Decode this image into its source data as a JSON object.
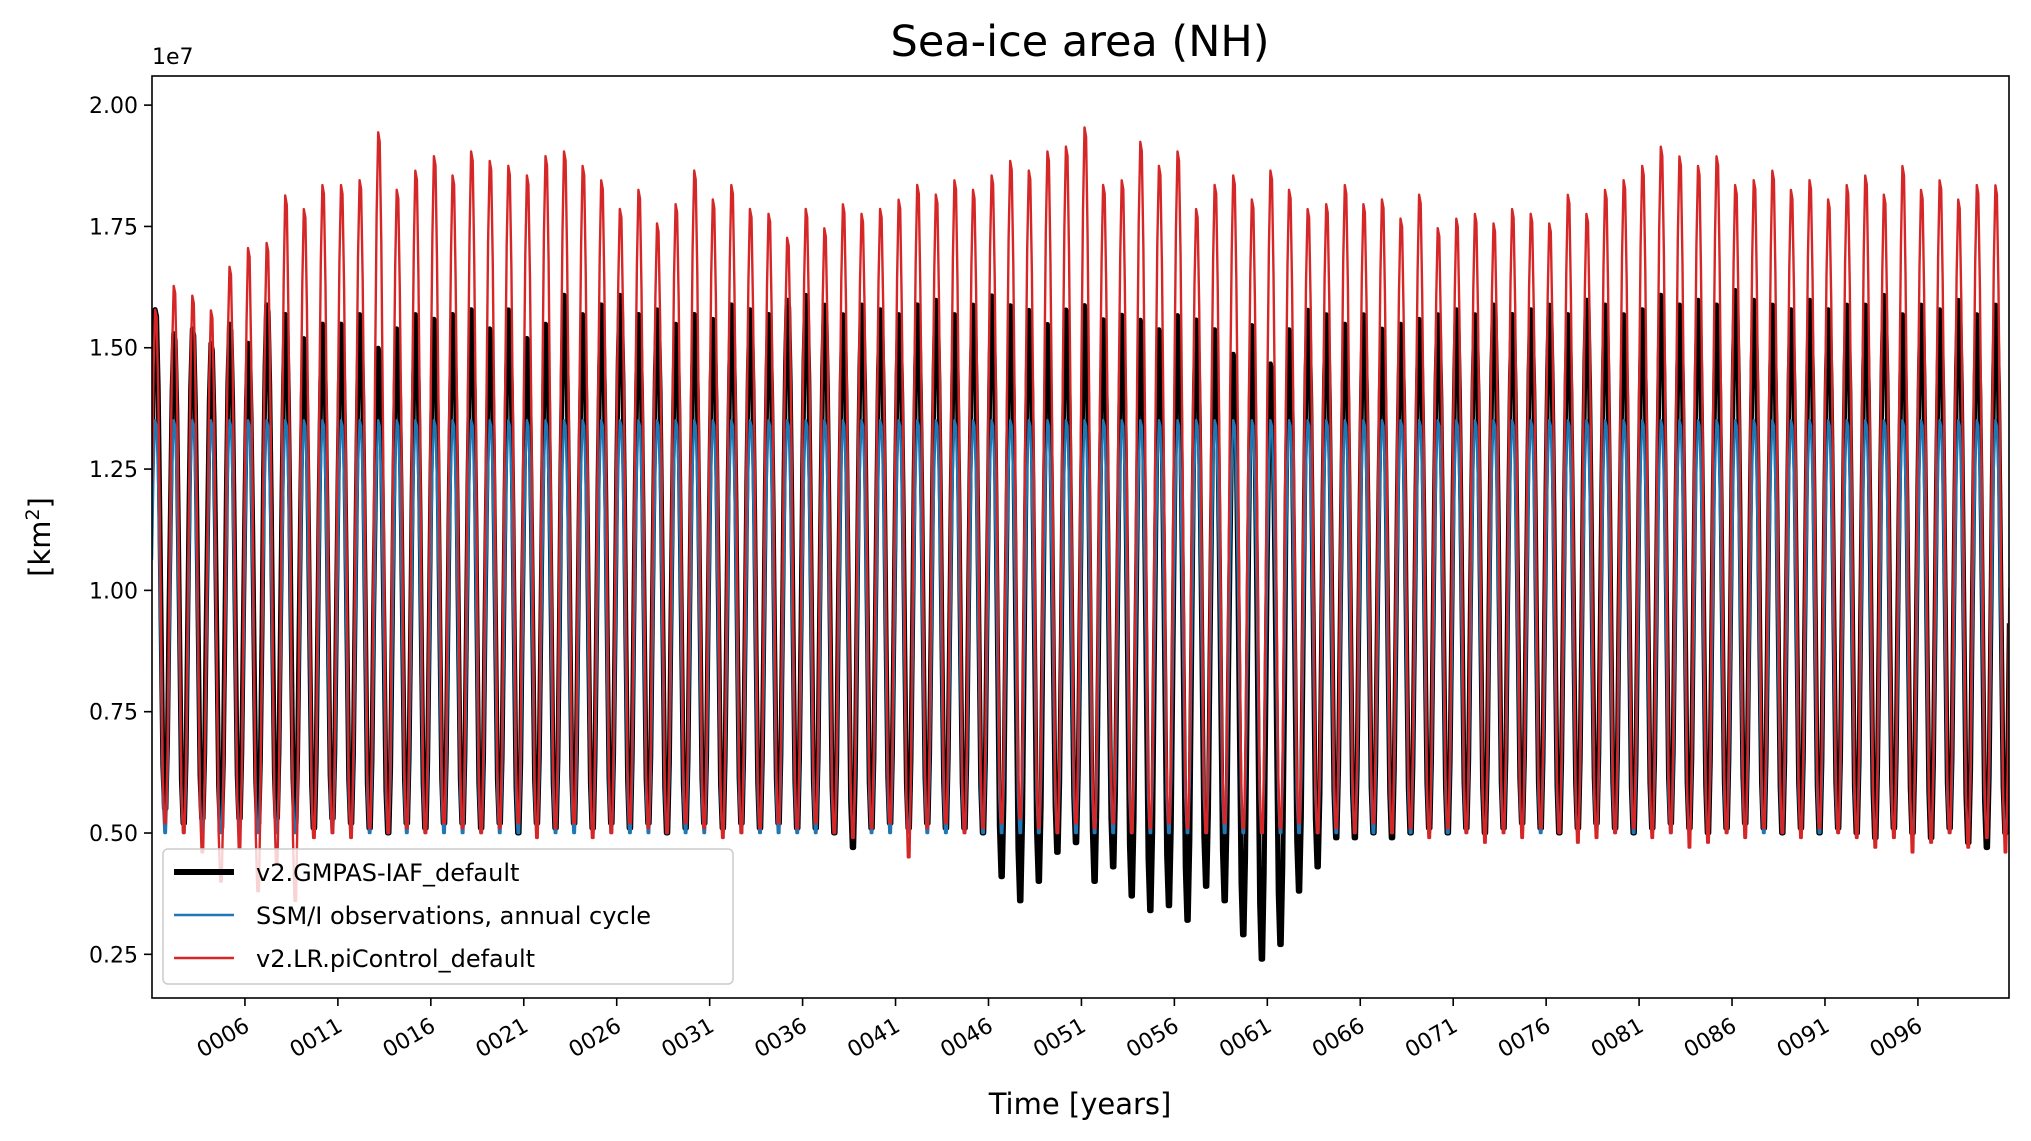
{
  "chart_data": {
    "type": "line",
    "title": "Sea-ice area (NH)",
    "xlabel": "Time [years]",
    "ylabel_base": "[km",
    "ylabel_sup": "2",
    "ylabel_end": "]",
    "y_offset_label": "1e7",
    "xlim": [
      1,
      100.9
    ],
    "ylim": [
      0.16,
      2.06
    ],
    "y_ticks": [
      0.25,
      0.5,
      0.75,
      1.0,
      1.25,
      1.5,
      1.75,
      2.0
    ],
    "y_tick_labels": [
      "0.25",
      "0.50",
      "0.75",
      "1.00",
      "1.25",
      "1.50",
      "1.75",
      "2.00"
    ],
    "x_ticks": [
      6,
      11,
      16,
      21,
      26,
      31,
      36,
      41,
      46,
      51,
      56,
      61,
      66,
      71,
      76,
      81,
      86,
      91,
      96
    ],
    "x_tick_labels": [
      "0006",
      "0011",
      "0016",
      "0021",
      "0026",
      "0031",
      "0036",
      "0041",
      "0046",
      "0051",
      "0056",
      "0061",
      "0066",
      "0071",
      "0076",
      "0081",
      "0086",
      "0091",
      "0096"
    ],
    "series": [
      {
        "name": "v2.GMPAS-IAF_default",
        "color": "#000000",
        "type": "annual_cycle",
        "start_year": 1,
        "maxima": [
          1.59,
          1.54,
          1.55,
          1.52,
          1.56,
          1.52,
          1.6,
          1.58,
          1.53,
          1.56,
          1.56,
          1.58,
          1.51,
          1.55,
          1.58,
          1.57,
          1.58,
          1.59,
          1.55,
          1.59,
          1.53,
          1.56,
          1.62,
          1.58,
          1.6,
          1.62,
          1.58,
          1.59,
          1.56,
          1.58,
          1.57,
          1.6,
          1.59,
          1.58,
          1.61,
          1.62,
          1.6,
          1.58,
          1.6,
          1.59,
          1.58,
          1.6,
          1.61,
          1.58,
          1.6,
          1.62,
          1.6,
          1.59,
          1.56,
          1.59,
          1.6,
          1.57,
          1.58,
          1.57,
          1.55,
          1.58,
          1.57,
          1.55,
          1.5,
          1.56,
          1.48,
          1.55,
          1.59,
          1.58,
          1.56,
          1.58,
          1.55,
          1.56,
          1.57,
          1.58,
          1.59,
          1.58,
          1.6,
          1.58,
          1.59,
          1.6,
          1.58,
          1.61,
          1.6,
          1.58,
          1.59,
          1.62,
          1.6,
          1.61,
          1.6,
          1.63,
          1.61,
          1.6,
          1.59,
          1.61,
          1.59,
          1.6,
          1.6,
          1.62,
          1.58,
          1.6,
          1.59,
          1.61,
          1.58,
          1.6
        ],
        "minima": [
          0.55,
          0.52,
          0.53,
          0.51,
          0.53,
          0.52,
          0.53,
          0.52,
          0.51,
          0.53,
          0.52,
          0.51,
          0.5,
          0.52,
          0.51,
          0.52,
          0.52,
          0.51,
          0.52,
          0.5,
          0.52,
          0.51,
          0.52,
          0.51,
          0.52,
          0.51,
          0.52,
          0.5,
          0.51,
          0.52,
          0.51,
          0.52,
          0.51,
          0.52,
          0.51,
          0.51,
          0.5,
          0.47,
          0.51,
          0.52,
          0.51,
          0.52,
          0.51,
          0.51,
          0.5,
          0.41,
          0.36,
          0.4,
          0.46,
          0.48,
          0.4,
          0.43,
          0.37,
          0.34,
          0.35,
          0.32,
          0.39,
          0.36,
          0.29,
          0.24,
          0.27,
          0.38,
          0.43,
          0.49,
          0.49,
          0.5,
          0.49,
          0.5,
          0.51,
          0.5,
          0.51,
          0.5,
          0.51,
          0.52,
          0.51,
          0.5,
          0.51,
          0.52,
          0.51,
          0.5,
          0.51,
          0.52,
          0.51,
          0.5,
          0.51,
          0.52,
          0.51,
          0.5,
          0.51,
          0.5,
          0.51,
          0.5,
          0.49,
          0.51,
          0.5,
          0.49,
          0.51,
          0.48,
          0.47,
          0.5
        ]
      },
      {
        "name": "SSM/I observations, annual cycle",
        "color": "#1f77b4",
        "type": "annual_cycle",
        "start_year": 1,
        "max": 1.36,
        "min": 0.5
      },
      {
        "name": "v2.LR.piControl_default",
        "color": "#d62728",
        "type": "annual_cycle",
        "start_year": 1,
        "maxima": [
          1.59,
          1.64,
          1.62,
          1.59,
          1.68,
          1.72,
          1.73,
          1.83,
          1.8,
          1.85,
          1.85,
          1.86,
          1.96,
          1.84,
          1.88,
          1.91,
          1.87,
          1.92,
          1.9,
          1.89,
          1.87,
          1.91,
          1.92,
          1.89,
          1.86,
          1.8,
          1.84,
          1.77,
          1.81,
          1.88,
          1.82,
          1.85,
          1.8,
          1.79,
          1.74,
          1.8,
          1.76,
          1.81,
          1.79,
          1.8,
          1.82,
          1.85,
          1.83,
          1.86,
          1.84,
          1.87,
          1.9,
          1.88,
          1.92,
          1.93,
          1.97,
          1.85,
          1.86,
          1.94,
          1.89,
          1.92,
          1.8,
          1.85,
          1.87,
          1.82,
          1.88,
          1.84,
          1.8,
          1.81,
          1.85,
          1.81,
          1.82,
          1.78,
          1.83,
          1.76,
          1.78,
          1.79,
          1.77,
          1.8,
          1.79,
          1.77,
          1.83,
          1.79,
          1.84,
          1.86,
          1.89,
          1.93,
          1.91,
          1.89,
          1.91,
          1.85,
          1.86,
          1.88,
          1.84,
          1.86,
          1.82,
          1.85,
          1.87,
          1.83,
          1.89,
          1.84,
          1.86,
          1.82,
          1.85,
          1.85
        ],
        "minima": [
          0.52,
          0.5,
          0.46,
          0.4,
          0.47,
          0.38,
          0.44,
          0.36,
          0.49,
          0.5,
          0.49,
          0.51,
          0.5,
          0.51,
          0.5,
          0.52,
          0.51,
          0.5,
          0.51,
          0.52,
          0.49,
          0.51,
          0.52,
          0.49,
          0.5,
          0.52,
          0.51,
          0.5,
          0.52,
          0.51,
          0.49,
          0.5,
          0.51,
          0.52,
          0.51,
          0.52,
          0.5,
          0.49,
          0.51,
          0.52,
          0.45,
          0.51,
          0.52,
          0.5,
          0.51,
          0.52,
          0.53,
          0.51,
          0.5,
          0.52,
          0.51,
          0.52,
          0.5,
          0.51,
          0.52,
          0.51,
          0.5,
          0.52,
          0.51,
          0.5,
          0.51,
          0.52,
          0.5,
          0.51,
          0.5,
          0.52,
          0.5,
          0.51,
          0.49,
          0.51,
          0.5,
          0.48,
          0.5,
          0.49,
          0.51,
          0.5,
          0.48,
          0.49,
          0.5,
          0.51,
          0.49,
          0.5,
          0.47,
          0.48,
          0.5,
          0.49,
          0.51,
          0.5,
          0.49,
          0.51,
          0.5,
          0.49,
          0.47,
          0.49,
          0.46,
          0.48,
          0.5,
          0.47,
          0.49,
          0.46
        ]
      }
    ],
    "legend": {
      "location": "lower-left",
      "entries": [
        "v2.GMPAS-IAF_default",
        "SSM/I observations, annual cycle",
        "v2.LR.piControl_default"
      ]
    }
  }
}
